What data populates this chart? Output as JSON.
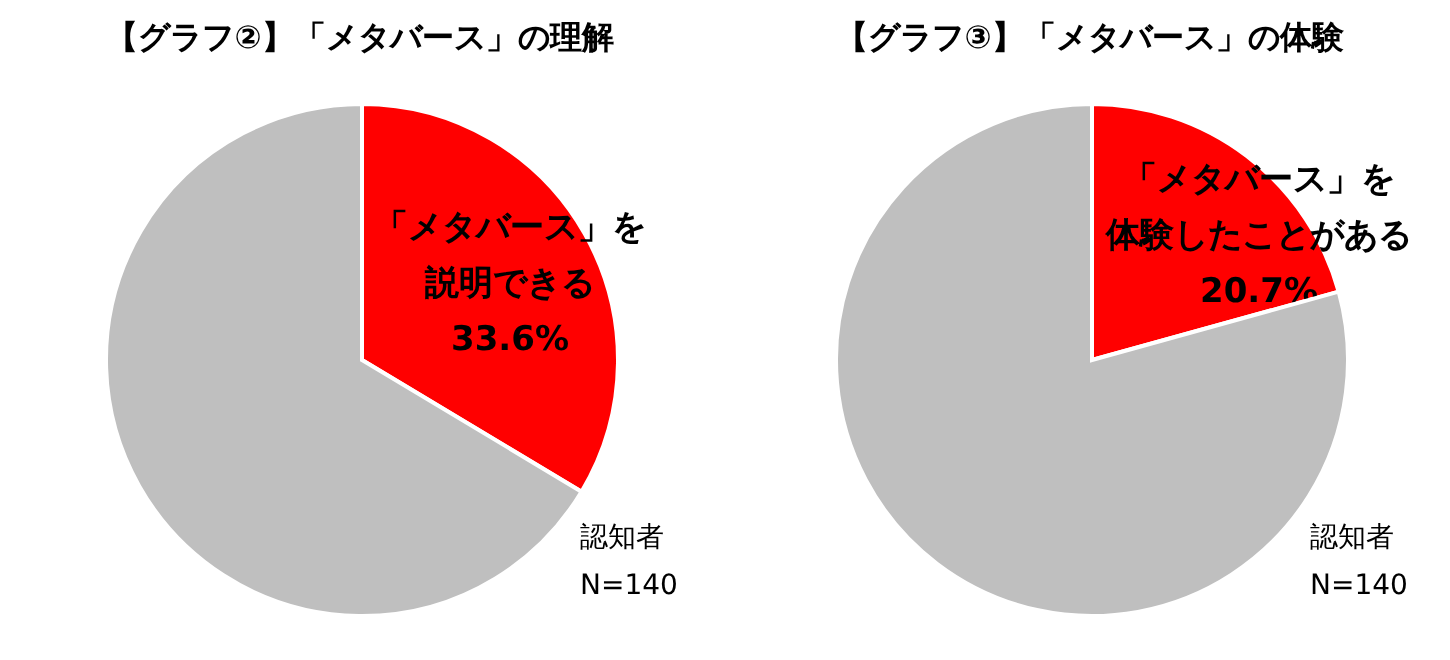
{
  "chart_data": [
    {
      "type": "pie",
      "title": "【グラフ②】「メタバース」の理解",
      "categories": [
        "「メタバース」を説明できる",
        null
      ],
      "values": [
        33.6,
        66.4
      ],
      "colors": [
        "#ff0000",
        "#bfbfbf"
      ],
      "value_labels": [
        "33.6%",
        null
      ],
      "annotations": [
        "認知者\nN=140"
      ]
    },
    {
      "type": "pie",
      "title": "【グラフ③】「メタバース」の体験",
      "categories": [
        "「メタバース」を体験したことがある",
        null
      ],
      "values": [
        20.7,
        79.3
      ],
      "colors": [
        "#ff0000",
        "#bfbfbf"
      ],
      "value_labels": [
        "20.7%",
        null
      ],
      "annotations": [
        "認知者\nN=140"
      ]
    }
  ]
}
